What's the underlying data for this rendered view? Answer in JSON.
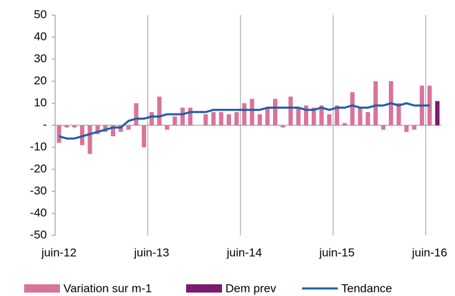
{
  "chart_data": {
    "type": "bar",
    "categories": [
      "juin-12",
      null,
      null,
      null,
      null,
      null,
      null,
      null,
      null,
      null,
      null,
      null,
      "juin-13",
      null,
      null,
      null,
      null,
      null,
      null,
      null,
      null,
      null,
      null,
      null,
      "juin-14",
      null,
      null,
      null,
      null,
      null,
      null,
      null,
      null,
      null,
      null,
      null,
      "juin-15",
      null,
      null,
      null,
      null,
      null,
      null,
      null,
      null,
      null,
      null,
      null,
      "juin-16",
      null
    ],
    "series": [
      {
        "name": "Variation sur m-1",
        "type": "bar",
        "color": "#d9739b",
        "values": [
          -8,
          -1,
          -1,
          -9,
          -13,
          -4,
          -3,
          -5,
          -3,
          -2,
          10,
          -10,
          6,
          13,
          -2,
          4,
          8,
          8,
          0,
          5,
          6,
          6,
          5,
          6,
          10,
          12,
          5,
          8,
          12,
          -1,
          13,
          8,
          9,
          8,
          9,
          5,
          9,
          1,
          15,
          8,
          6,
          20,
          -2,
          20,
          10,
          -3,
          -2,
          18,
          18,
          null
        ]
      },
      {
        "name": "Dem prev",
        "type": "bar",
        "color": "#7b1a6e",
        "values": [
          null,
          null,
          null,
          null,
          null,
          null,
          null,
          null,
          null,
          null,
          null,
          null,
          null,
          null,
          null,
          null,
          null,
          null,
          null,
          null,
          null,
          null,
          null,
          null,
          null,
          null,
          null,
          null,
          null,
          null,
          null,
          null,
          null,
          null,
          null,
          null,
          null,
          null,
          null,
          null,
          null,
          null,
          null,
          null,
          null,
          null,
          null,
          null,
          null,
          11
        ]
      },
      {
        "name": "Tendance",
        "type": "line",
        "color": "#1f5fa8",
        "values": [
          -5,
          -6,
          -6,
          -5,
          -4,
          -3,
          -2,
          -1,
          -1,
          2,
          3,
          3,
          4,
          4,
          5,
          5,
          5,
          6,
          6,
          6,
          7,
          7,
          7,
          7,
          7,
          7,
          7,
          8,
          8,
          8,
          8,
          8,
          7,
          7,
          8,
          7,
          8,
          8,
          9,
          8,
          8,
          9,
          9,
          10,
          9,
          10,
          9,
          9,
          9,
          null
        ]
      }
    ],
    "ylim": [
      -50,
      50
    ],
    "yticks": [
      -50,
      -40,
      -30,
      -20,
      -10,
      {
        "value": 0,
        "label": "-"
      },
      10,
      20,
      30,
      40,
      50
    ],
    "grid": true
  }
}
